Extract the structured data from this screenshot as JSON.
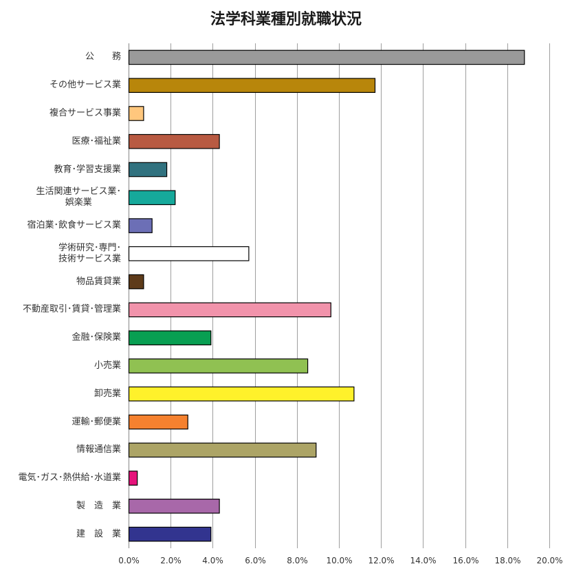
{
  "chart_data": {
    "type": "bar",
    "orientation": "horizontal",
    "title": "法学科業種別就職状況",
    "categories": [
      "公　　務",
      "その他サービス業",
      "複合サービス事業",
      "医療･福祉業",
      "教育･学習支援業",
      "生活関連サービス業･\n娯楽業",
      "宿泊業･飲食サービス業",
      "学術研究･専門･\n技術サービス業",
      "物品賃貸業",
      "不動産取引･賃貸･管理業",
      "金融･保険業",
      "小売業",
      "卸売業",
      "運輸･郵便業",
      "情報通信業",
      "電気･ガス･熱供給･水道業",
      "製　造　業",
      "建　設　業"
    ],
    "values": [
      18.8,
      11.7,
      0.7,
      4.3,
      1.8,
      2.2,
      1.1,
      5.7,
      0.7,
      9.6,
      3.9,
      8.5,
      10.7,
      2.8,
      8.9,
      0.4,
      4.3,
      3.9
    ],
    "colors": [
      "#9a9a9a",
      "#b8860b",
      "#ffc77d",
      "#b85a42",
      "#31727f",
      "#16a99b",
      "#6c6fb6",
      "#ffffff",
      "#5e3b1a",
      "#f193ab",
      "#089f52",
      "#90c152",
      "#fff12b",
      "#f5812f",
      "#aca466",
      "#e6137b",
      "#a868a9",
      "#32348f"
    ],
    "xlim": [
      0,
      20
    ],
    "x_tick_values": [
      0,
      2,
      4,
      6,
      8,
      10,
      12,
      14,
      16,
      18,
      20
    ],
    "x_tick_labels": [
      "0.0%",
      "2.0%",
      "4.0%",
      "6.0%",
      "8.0%",
      "10.0%",
      "12.0%",
      "14.0%",
      "16.0%",
      "18.0%",
      "20.0%"
    ],
    "grid": true,
    "legend": "none"
  }
}
